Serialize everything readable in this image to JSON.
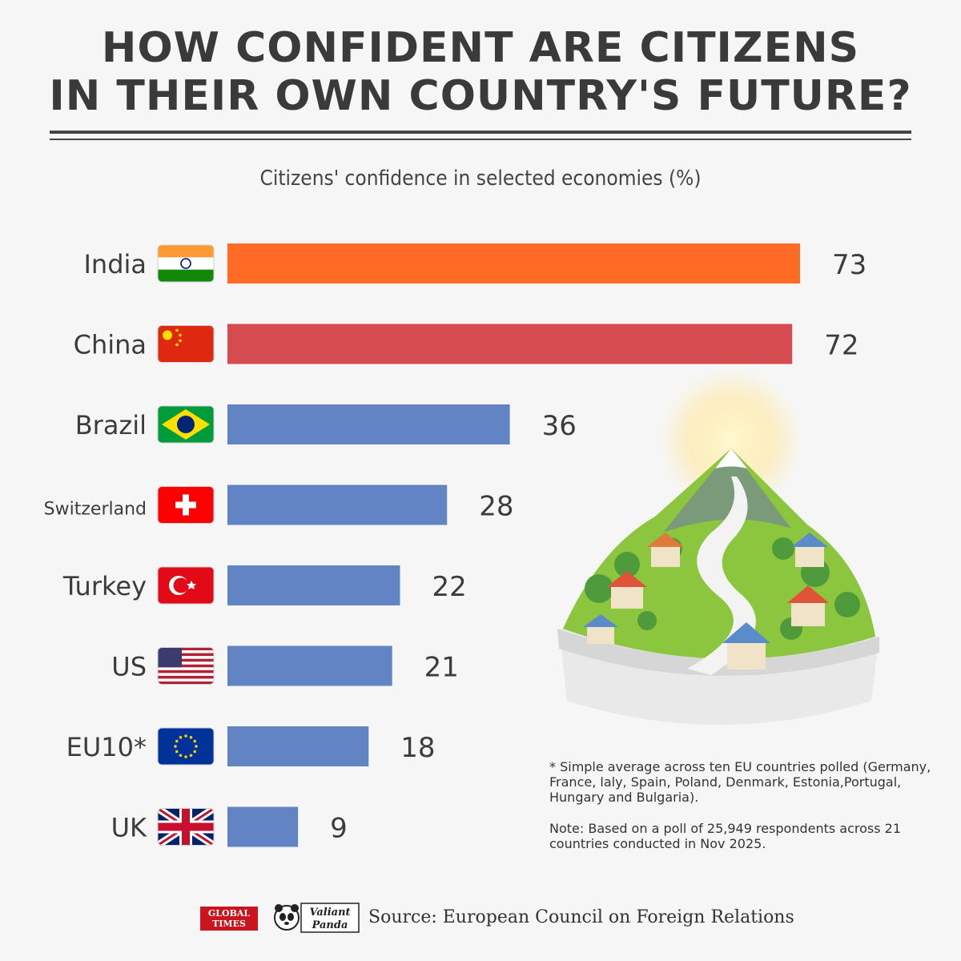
{
  "title_line1": "HOW CONFIDENT ARE CITIZENS",
  "title_line2": "IN THEIR OWN COUNTRY'S FUTURE?",
  "chart_data": {
    "type": "bar",
    "orientation": "horizontal",
    "title": "Citizens' confidence in selected economies (%)",
    "categories": [
      "India",
      "China",
      "Brazil",
      "Switzerland",
      "Turkey",
      "US",
      "EU10*",
      "UK"
    ],
    "values": [
      73,
      72,
      36,
      28,
      22,
      21,
      18,
      9
    ],
    "flags": [
      "india-flag-icon",
      "china-flag-icon",
      "brazil-flag-icon",
      "switzerland-flag-icon",
      "turkey-flag-icon",
      "us-flag-icon",
      "eu-flag-icon",
      "uk-flag-icon"
    ],
    "colors": [
      "#ff6a24",
      "#d54b50",
      "#6283c4",
      "#6283c4",
      "#6283c4",
      "#6283c4",
      "#6283c4",
      "#6283c4"
    ],
    "xlim": [
      0,
      73
    ],
    "grid": false,
    "legend": "none"
  },
  "notes": {
    "footnote": "* Simple average across ten EU countries polled (Germany, France, laly, Spain, Poland, Denmark, Estonia,Portugal, Hungary and Bulgaria).",
    "note": "Note: Based on a poll of 25,949 respondents across 21 countries conducted in Nov 2025."
  },
  "footer": {
    "logo1_line1": "GLOBAL",
    "logo1_line2": "TIMES",
    "logo2_line1": "Valiant",
    "logo2_line2": "Panda",
    "source": "Source: European Council on Foreign Relations"
  },
  "illustration_icon": "mountain-village-illustration-icon"
}
